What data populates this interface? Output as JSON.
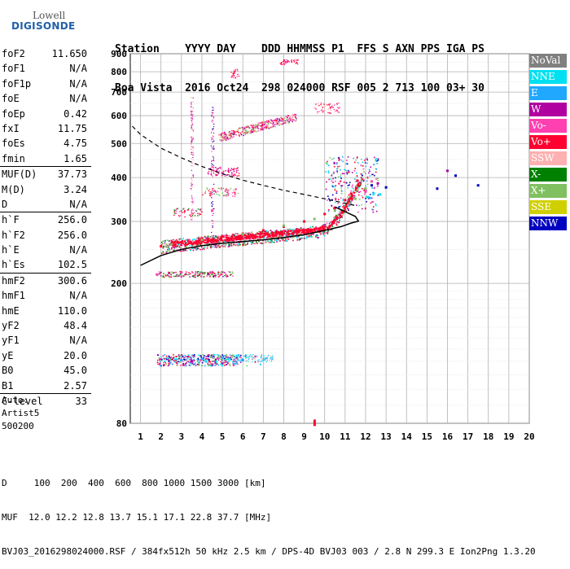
{
  "logo": {
    "line1": "Lowell",
    "line2": "DIGISONDE"
  },
  "header": {
    "labels": "Station    YYYY DAY    DDD HHMMSS P1  FFS S AXN PPS IGA PS",
    "values": "Boa Vista  2016 Oct24  298 024000 RSF 005 2 713 100 03+ 30"
  },
  "params": {
    "g1": [
      {
        "label": "foF2",
        "value": "11.650"
      },
      {
        "label": "foF1",
        "value": "N/A"
      },
      {
        "label": "foF1p",
        "value": "N/A"
      },
      {
        "label": "foE",
        "value": "N/A"
      },
      {
        "label": "foEp",
        "value": "0.42"
      },
      {
        "label": "fxI",
        "value": "11.75"
      },
      {
        "label": "foEs",
        "value": "4.75"
      },
      {
        "label": "fmin",
        "value": "1.65"
      }
    ],
    "g2": [
      {
        "label": "MUF(D)",
        "value": "37.73"
      },
      {
        "label": "M(D)",
        "value": "3.24"
      },
      {
        "label": "D",
        "value": "N/A"
      }
    ],
    "g3": [
      {
        "label": "h`F",
        "value": "256.0"
      },
      {
        "label": "h`F2",
        "value": "256.0"
      },
      {
        "label": "h`E",
        "value": "N/A"
      },
      {
        "label": "h`Es",
        "value": "102.5"
      }
    ],
    "g4": [
      {
        "label": "hmF2",
        "value": "300.6"
      },
      {
        "label": "hmF1",
        "value": "N/A"
      },
      {
        "label": "hmE",
        "value": "110.0"
      },
      {
        "label": "yF2",
        "value": "48.4"
      },
      {
        "label": "yF1",
        "value": "N/A"
      },
      {
        "label": "yE",
        "value": "20.0"
      },
      {
        "label": "B0",
        "value": "45.0"
      },
      {
        "label": "B1",
        "value": "2.57"
      }
    ],
    "g5": [
      {
        "label": "C-level",
        "value": "33"
      }
    ]
  },
  "auto": {
    "line1": "Auto:",
    "line2": "Artist5",
    "line3": "500200"
  },
  "legend": [
    {
      "label": "NoVal",
      "color": "#808080"
    },
    {
      "label": "NNE",
      "color": "#00e0f0"
    },
    {
      "label": "E",
      "color": "#20a8ff"
    },
    {
      "label": "W",
      "color": "#b000a0"
    },
    {
      "label": "Vo-",
      "color": "#ff40b0"
    },
    {
      "label": "Vo+",
      "color": "#ff0030"
    },
    {
      "label": "SSW",
      "color": "#ffb0b0"
    },
    {
      "label": "X-",
      "color": "#008000"
    },
    {
      "label": "X+",
      "color": "#80c060"
    },
    {
      "label": "SSE",
      "color": "#d0d000"
    },
    {
      "label": "NNW",
      "color": "#0000c0"
    }
  ],
  "bottom": {
    "line1": "D     100  200  400  600  800 1000 1500 3000 [km]",
    "line2": "MUF  12.0 12.2 12.8 13.7 15.1 17.1 22.8 37.7 [MHz]",
    "line3": "BVJ03_2016298024000.RSF / 384fx512h 50 kHz 2.5 km / DPS-4D BVJ03 003 / 2.8 N 299.3 E Ion2Png 1.3.20"
  },
  "chart_data": {
    "type": "scatter",
    "xlabel": "",
    "ylabel": "",
    "xlim": [
      0.5,
      20
    ],
    "ylim": [
      80,
      900
    ],
    "x_ticks": [
      1,
      2,
      3,
      4,
      5,
      6,
      7,
      8,
      9,
      10,
      11,
      12,
      13,
      14,
      15,
      16,
      17,
      18,
      19,
      20
    ],
    "y_ticks": [
      80,
      200,
      300,
      400,
      500,
      600,
      700,
      800,
      900
    ],
    "y_scale": "log",
    "grid": true,
    "legend_position": "right",
    "series": [
      {
        "name": "Vo+",
        "color": "#ff0030",
        "x": [
          2,
          3,
          4,
          5,
          6,
          7,
          8,
          9,
          10,
          10.5,
          11,
          11.3,
          11.6
        ],
        "y": [
          255,
          262,
          268,
          272,
          277,
          283,
          290,
          300,
          315,
          328,
          345,
          360,
          392
        ]
      },
      {
        "name": "X+",
        "color": "#80c060",
        "x": [
          2.5,
          4,
          6,
          8,
          9.5,
          10.5,
          11.5,
          12
        ],
        "y": [
          258,
          266,
          276,
          292,
          305,
          322,
          348,
          372
        ]
      },
      {
        "name": "Vo-",
        "color": "#ff40b0",
        "x": [
          1.8,
          3,
          4.5,
          5,
          12,
          12.3
        ],
        "y": [
          212,
          215,
          322,
          412,
          365,
          390
        ]
      },
      {
        "name": "NNE",
        "color": "#00e0f0",
        "x": [
          12.1,
          12.4,
          12.7,
          4.2,
          5.3
        ],
        "y": [
          352,
          360,
          358,
          120,
          122
        ]
      },
      {
        "name": "NNW",
        "color": "#0000c0",
        "x": [
          12.3,
          13,
          15.5,
          16.4,
          17.5
        ],
        "y": [
          380,
          375,
          372,
          405,
          380
        ]
      },
      {
        "name": "W",
        "color": "#b000a0",
        "x": [
          12.6,
          16,
          3.5,
          6
        ],
        "y": [
          385,
          418,
          120,
          121
        ]
      },
      {
        "name": "E",
        "color": "#20a8ff",
        "x": [
          3,
          4,
          5,
          6,
          12.2
        ],
        "y": [
          121,
          122,
          123,
          121,
          350
        ]
      }
    ],
    "echo_bands": [
      {
        "name": "Es",
        "x": [
          1.8,
          6.5
        ],
        "y": [
          117,
          125
        ],
        "density": 420
      },
      {
        "name": "F",
        "x": [
          2,
          11.7
        ],
        "y": [
          250,
          400
        ],
        "density": 0
      },
      {
        "name": "F second hop",
        "x": [
          3.5,
          8.5
        ],
        "y": [
          510,
          610
        ],
        "density": 0
      }
    ],
    "profile_curve": {
      "x": [
        0.7,
        1,
        2,
        3,
        4,
        5,
        6,
        7,
        8,
        9,
        10,
        11,
        11.6,
        11.65,
        11.4,
        10.5
      ],
      "y": [
        555,
        520,
        455,
        410,
        380,
        360,
        345,
        334,
        324,
        316,
        309,
        302,
        300.6,
        300,
        297,
        292
      ]
    },
    "dashed_curve": {
      "x": [
        0.6,
        1,
        2,
        3,
        4,
        5,
        6,
        7,
        8,
        9,
        10,
        11,
        11.6
      ],
      "y": [
        560,
        530,
        485,
        455,
        430,
        410,
        393,
        380,
        368,
        358,
        348,
        338,
        332
      ]
    },
    "trace_curve": {
      "x": [
        1,
        2,
        3,
        4,
        5,
        6,
        7,
        8,
        9,
        10,
        10.8,
        11.3,
        11.65,
        11.5,
        11,
        10.5
      ],
      "y": [
        225,
        240,
        250,
        256,
        260,
        263,
        266,
        270,
        275,
        283,
        290,
        297,
        300.6,
        310,
        320,
        330
      ]
    }
  }
}
